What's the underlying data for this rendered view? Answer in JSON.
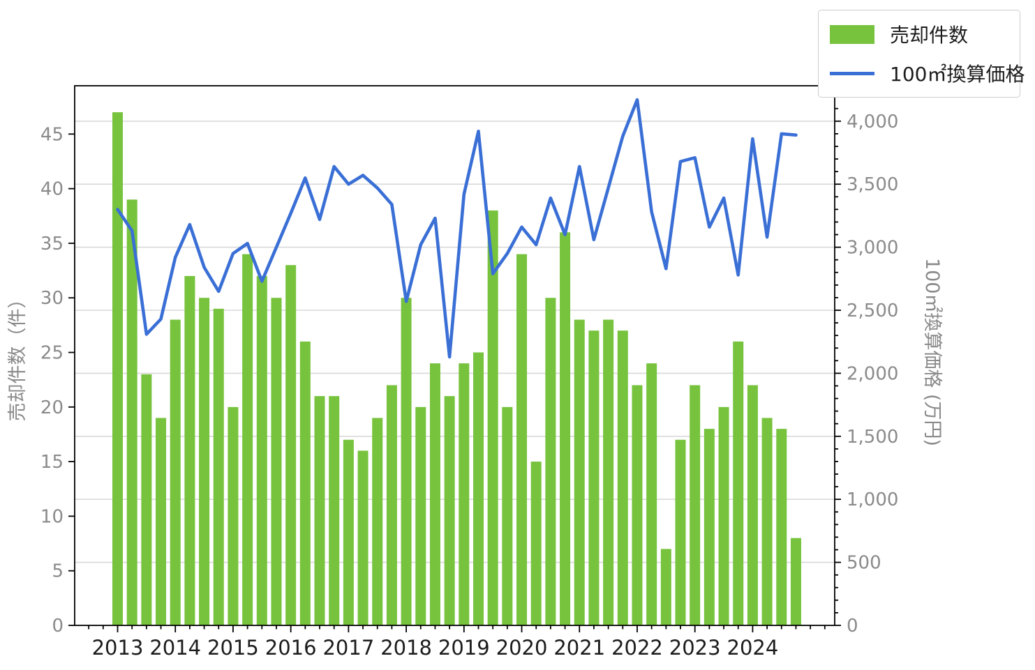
{
  "legend": {
    "bar_label": "売却件数",
    "line_label": "100㎡換算価格"
  },
  "axes": {
    "left_title": "売却件数（件）",
    "right_title": "100㎡換算価格 (万円)",
    "left_tick_labels": [
      "0",
      "5",
      "10",
      "15",
      "20",
      "25",
      "30",
      "35",
      "40",
      "45"
    ],
    "left_tick_values": [
      0,
      5,
      10,
      15,
      20,
      25,
      30,
      35,
      40,
      45
    ],
    "right_tick_labels": [
      "0",
      "500",
      "1,000",
      "1,500",
      "2,000",
      "2,500",
      "3,000",
      "3,500",
      "4,000"
    ],
    "right_tick_values": [
      0,
      500,
      1000,
      1500,
      2000,
      2500,
      3000,
      3500,
      4000
    ],
    "x_tick_labels": [
      "2013",
      "2014",
      "2015",
      "2016",
      "2017",
      "2018",
      "2019",
      "2020",
      "2021",
      "2022",
      "2023",
      "2024"
    ]
  },
  "colors": {
    "bar": "#77c33d",
    "line": "#3a6fd6",
    "grid": "#d9d9d9",
    "axis": "#000000",
    "y_tick_label": "#8a8a8a",
    "x_tick_label": "#1c1c1c"
  },
  "chart_data": {
    "type": "bar+line combo (dual axis)",
    "x_unit": "quarter",
    "categories": [
      "2013Q1",
      "2013Q2",
      "2013Q3",
      "2013Q4",
      "2014Q1",
      "2014Q2",
      "2014Q3",
      "2014Q4",
      "2015Q1",
      "2015Q2",
      "2015Q3",
      "2015Q4",
      "2016Q1",
      "2016Q2",
      "2016Q3",
      "2016Q4",
      "2017Q1",
      "2017Q2",
      "2017Q3",
      "2017Q4",
      "2018Q1",
      "2018Q2",
      "2018Q3",
      "2018Q4",
      "2019Q1",
      "2019Q2",
      "2019Q3",
      "2019Q4",
      "2020Q1",
      "2020Q2",
      "2020Q3",
      "2020Q4",
      "2021Q1",
      "2021Q2",
      "2021Q3",
      "2021Q4",
      "2022Q1",
      "2022Q2",
      "2022Q3",
      "2022Q4",
      "2023Q1",
      "2023Q2",
      "2023Q3",
      "2023Q4",
      "2024Q1",
      "2024Q2",
      "2024Q3",
      "2024Q4"
    ],
    "series": [
      {
        "name": "売却件数",
        "type": "bar",
        "axis": "left",
        "values": [
          47,
          39,
          23,
          19,
          28,
          32,
          30,
          29,
          20,
          34,
          32,
          30,
          33,
          26,
          21,
          21,
          17,
          16,
          19,
          22,
          30,
          20,
          24,
          21,
          24,
          25,
          38,
          20,
          34,
          15,
          30,
          36,
          28,
          27,
          28,
          27,
          22,
          24,
          7,
          17,
          22,
          18,
          20,
          26,
          22,
          19,
          18,
          8
        ]
      },
      {
        "name": "100㎡換算価格",
        "type": "line",
        "axis": "right",
        "values": [
          3300,
          3130,
          2310,
          2430,
          2920,
          3180,
          2840,
          2650,
          2950,
          3030,
          2730,
          3000,
          3270,
          3550,
          3220,
          3640,
          3500,
          3570,
          3470,
          3340,
          2570,
          3020,
          3230,
          2130,
          3420,
          3920,
          2790,
          2950,
          3160,
          3020,
          3390,
          3100,
          3640,
          3060,
          3470,
          3880,
          4170,
          3280,
          2830,
          3680,
          3710,
          3160,
          3390,
          2780,
          3860,
          3080,
          3900,
          3890
        ]
      }
    ],
    "title": "",
    "xlabel": "",
    "ylabel_left": "売却件数（件）",
    "ylabel_right": "100㎡換算価格 (万円)",
    "ylim_left": [
      0,
      49.4
    ],
    "ylim_right": [
      0,
      4280
    ],
    "grid": "horizontal gridlines at right-axis 500 steps",
    "legend_position": "top-right, outside plot"
  }
}
